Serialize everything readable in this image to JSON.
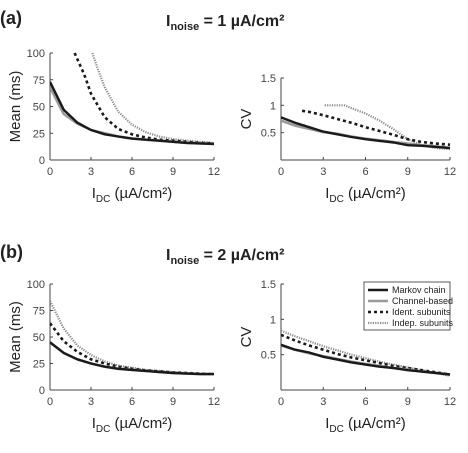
{
  "panels": [
    {
      "label": "(a)",
      "title_main": "I",
      "title_sub": "noise",
      "title_rest": " = 1 µA/cm²"
    },
    {
      "label": "(b)",
      "title_main": "I",
      "title_sub": "noise",
      "title_rest": " = 2 µA/cm²"
    }
  ],
  "xlabel": {
    "main": "I",
    "sub": "DC",
    "rest": " (µA/cm²)"
  },
  "styles": {
    "Markov chain": {
      "color": "#1a1a1a",
      "dash": "",
      "width": 2.4
    },
    "Channel-based": {
      "color": "#9a9a9a",
      "dash": "",
      "width": 2.6
    },
    "Ident. subunits": {
      "color": "#1a1a1a",
      "dash": "3,3",
      "width": 2.6
    },
    "Indep. subunits": {
      "color": "#8a8a8a",
      "dash": "1.2,1.2",
      "width": 2.2
    }
  },
  "chart_data": [
    {
      "type": "line",
      "panel": "a",
      "title": "Inoise = 1 µA/cm²",
      "xlabel": "IDC (µA/cm²)",
      "ylabel": "Mean (ms)",
      "xlim": [
        0,
        12
      ],
      "ylim": [
        0,
        100
      ],
      "xticks": [
        "0",
        "3",
        "6",
        "9",
        "12"
      ],
      "yticks": [
        "0",
        "25",
        "50",
        "75",
        "100"
      ],
      "series": [
        {
          "name": "Markov chain",
          "x": [
            0,
            1,
            2,
            3,
            4,
            5,
            6,
            7,
            8,
            9,
            10,
            11,
            12
          ],
          "y": [
            73,
            47,
            35,
            28,
            24,
            22,
            20,
            19,
            18,
            17,
            16,
            15.5,
            15
          ]
        },
        {
          "name": "Channel-based",
          "x": [
            0,
            1,
            2,
            3,
            4,
            5,
            6,
            7,
            8,
            9,
            10,
            11,
            12
          ],
          "y": [
            68,
            43,
            34,
            28,
            25,
            22,
            20,
            19,
            18,
            17,
            16,
            15.5,
            15
          ]
        },
        {
          "name": "Ident. subunits",
          "x": [
            1.8,
            2.5,
            3,
            4,
            5,
            6,
            7,
            8,
            9,
            10,
            11,
            12
          ],
          "y": [
            100,
            80,
            62,
            40,
            29,
            24,
            21,
            19,
            18,
            17,
            16,
            15.5
          ]
        },
        {
          "name": "Indep. subunits",
          "x": [
            3.1,
            3.5,
            4,
            5,
            6,
            7,
            8,
            9,
            10,
            11,
            12
          ],
          "y": [
            100,
            85,
            68,
            45,
            33,
            26,
            22,
            19.5,
            18,
            17,
            16
          ]
        }
      ]
    },
    {
      "type": "line",
      "panel": "a",
      "xlabel": "IDC (µA/cm²)",
      "ylabel": "CV",
      "xlim": [
        0,
        12
      ],
      "ylim": [
        0,
        1.5
      ],
      "xticks": [
        "0",
        "3",
        "6",
        "9",
        "12"
      ],
      "yticks": [
        "0.5",
        "1",
        "1.5"
      ],
      "series": [
        {
          "name": "Markov chain",
          "x": [
            0,
            1,
            2,
            3,
            4,
            5,
            6,
            7,
            8,
            9,
            10,
            11,
            12
          ],
          "y": [
            0.78,
            0.68,
            0.6,
            0.52,
            0.47,
            0.42,
            0.38,
            0.35,
            0.32,
            0.27,
            0.26,
            0.24,
            0.22
          ]
        },
        {
          "name": "Channel-based",
          "x": [
            0,
            1,
            2,
            3,
            4,
            5,
            6,
            7,
            8,
            9,
            10,
            11,
            12
          ],
          "y": [
            0.72,
            0.63,
            0.57,
            0.51,
            0.48,
            0.43,
            0.39,
            0.36,
            0.33,
            0.3,
            0.27,
            0.25,
            0.22
          ]
        },
        {
          "name": "Ident. subunits",
          "x": [
            1.5,
            2,
            3,
            4,
            5,
            6,
            7,
            8,
            9,
            10,
            11,
            12
          ],
          "y": [
            0.9,
            0.88,
            0.82,
            0.75,
            0.68,
            0.6,
            0.53,
            0.46,
            0.38,
            0.33,
            0.3,
            0.28
          ]
        },
        {
          "name": "Indep. subunits",
          "x": [
            3.1,
            3.5,
            4,
            4.5,
            5,
            6,
            7,
            8,
            9,
            10,
            11,
            12
          ],
          "y": [
            1.0,
            1.0,
            1.0,
            1.0,
            0.95,
            0.85,
            0.72,
            0.56,
            0.38,
            0.27,
            0.22,
            0.2
          ]
        }
      ]
    },
    {
      "type": "line",
      "panel": "b",
      "title": "Inoise = 2 µA/cm²",
      "xlabel": "IDC (µA/cm²)",
      "ylabel": "Mean (ms)",
      "xlim": [
        0,
        12
      ],
      "ylim": [
        0,
        100
      ],
      "xticks": [
        "0",
        "3",
        "6",
        "9",
        "12"
      ],
      "yticks": [
        "0",
        "25",
        "50",
        "75",
        "100"
      ],
      "series": [
        {
          "name": "Markov chain",
          "x": [
            0,
            1,
            2,
            3,
            4,
            5,
            6,
            7,
            8,
            9,
            10,
            11,
            12
          ],
          "y": [
            45,
            35,
            29,
            25,
            22,
            20,
            19,
            18,
            17,
            16,
            15.5,
            15,
            15
          ]
        },
        {
          "name": "Channel-based",
          "x": [
            0,
            1,
            2,
            3,
            4,
            5,
            6,
            7,
            8,
            9,
            10,
            11,
            12
          ],
          "y": [
            45,
            35,
            29,
            25,
            22,
            20,
            19,
            18,
            17,
            16,
            15.5,
            15,
            15
          ]
        },
        {
          "name": "Ident. subunits",
          "x": [
            0,
            1,
            2,
            3,
            4,
            5,
            6,
            7,
            8,
            9,
            10,
            11,
            12
          ],
          "y": [
            63,
            46,
            36,
            29,
            25,
            22,
            20,
            18.5,
            17.5,
            16.5,
            16,
            15.5,
            15
          ]
        },
        {
          "name": "Indep. subunits",
          "x": [
            0,
            1,
            2,
            3,
            4,
            5,
            6,
            7,
            8,
            9,
            10,
            11,
            12
          ],
          "y": [
            84,
            58,
            42,
            33,
            27,
            23,
            21,
            19,
            18,
            17,
            16,
            15.5,
            15
          ]
        }
      ]
    },
    {
      "type": "line",
      "panel": "b",
      "xlabel": "IDC (µA/cm²)",
      "ylabel": "CV",
      "xlim": [
        0,
        12
      ],
      "ylim": [
        0,
        1.5
      ],
      "xticks": [
        "0",
        "3",
        "6",
        "9",
        "12"
      ],
      "yticks": [
        "0.5",
        "1",
        "1.5"
      ],
      "legend": {
        "position": "top-right",
        "entries": [
          "Markov chain",
          "Channel-based",
          "Ident. subunits",
          "Indep. subunits"
        ]
      },
      "series": [
        {
          "name": "Markov chain",
          "x": [
            0,
            1,
            2,
            3,
            4,
            5,
            6,
            7,
            8,
            9,
            10,
            11,
            12
          ],
          "y": [
            0.64,
            0.57,
            0.53,
            0.47,
            0.43,
            0.39,
            0.36,
            0.33,
            0.31,
            0.28,
            0.26,
            0.24,
            0.22
          ]
        },
        {
          "name": "Channel-based",
          "x": [
            0,
            1,
            2,
            3,
            4,
            5,
            6,
            7,
            8,
            9,
            10,
            11,
            12
          ],
          "y": [
            0.63,
            0.57,
            0.52,
            0.48,
            0.44,
            0.4,
            0.37,
            0.34,
            0.31,
            0.29,
            0.26,
            0.24,
            0.22
          ]
        },
        {
          "name": "Ident. subunits",
          "x": [
            0,
            1,
            2,
            3,
            4,
            5,
            6,
            7,
            8,
            9,
            10,
            11,
            12
          ],
          "y": [
            0.78,
            0.7,
            0.63,
            0.57,
            0.51,
            0.46,
            0.42,
            0.38,
            0.34,
            0.31,
            0.28,
            0.25,
            0.22
          ]
        },
        {
          "name": "Indep. subunits",
          "x": [
            0,
            1,
            2,
            3,
            4,
            5,
            6,
            7,
            8,
            9,
            10,
            11,
            12
          ],
          "y": [
            0.84,
            0.76,
            0.69,
            0.62,
            0.56,
            0.5,
            0.45,
            0.4,
            0.36,
            0.32,
            0.28,
            0.24,
            0.2
          ]
        }
      ]
    }
  ]
}
